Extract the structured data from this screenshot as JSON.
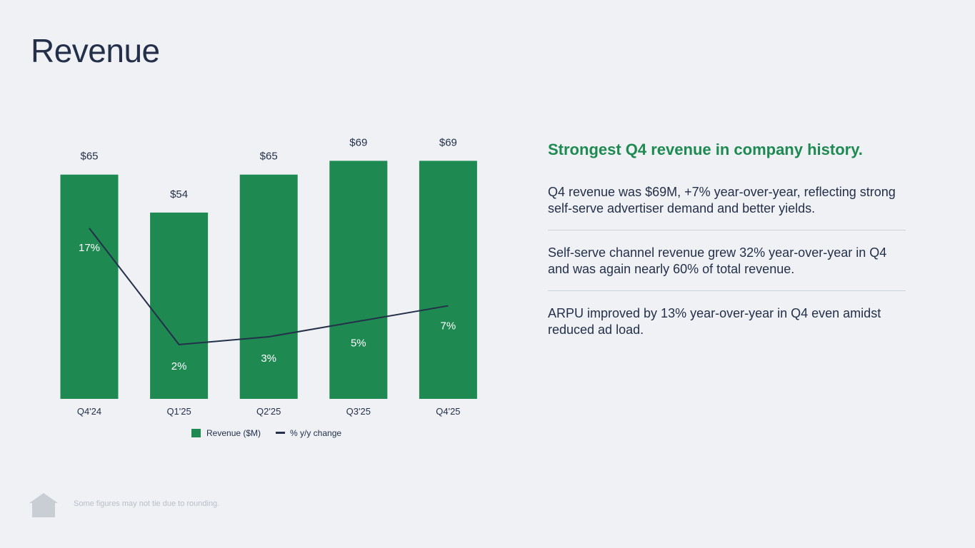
{
  "page": {
    "title": "Revenue",
    "footnote": "Some figures may not tie due to rounding.",
    "logo_icon": "house-logo-icon"
  },
  "panel": {
    "headline": "Strongest Q4 revenue in company history.",
    "points": [
      "Q4 revenue was $69M, +7% year-over-year, reflecting strong self-serve advertiser demand and better yields.",
      "Self-serve channel revenue grew 32% year-over-year in Q4 and was again nearly 60% of total revenue.",
      "ARPU improved by 13% year-over-year in Q4 even amidst reduced ad load."
    ]
  },
  "colors": {
    "bar": "#1e8a52",
    "line": "#243049",
    "text": "#243049",
    "accent": "#1e8a52",
    "background": "#eff1f5"
  },
  "chart_data": {
    "type": "bar",
    "title": "",
    "xlabel": "",
    "ylabel": "",
    "categories": [
      "Q4'24",
      "Q1'25",
      "Q2'25",
      "Q3'25",
      "Q4'25"
    ],
    "series": [
      {
        "name": "Revenue ($M)",
        "type": "bar",
        "values": [
          65,
          54,
          65,
          69,
          69
        ],
        "labels": [
          "$65",
          "$54",
          "$65",
          "$69",
          "$69"
        ]
      },
      {
        "name": "% y/y change",
        "type": "line",
        "values": [
          17,
          2,
          3,
          5,
          7
        ],
        "labels": [
          "17%",
          "2%",
          "3%",
          "5%",
          "7%"
        ]
      }
    ],
    "ylim_bar": [
      0,
      69.7
    ],
    "ylim_line": [
      -5,
      26
    ],
    "legend": "bottom-center",
    "grid": false
  }
}
